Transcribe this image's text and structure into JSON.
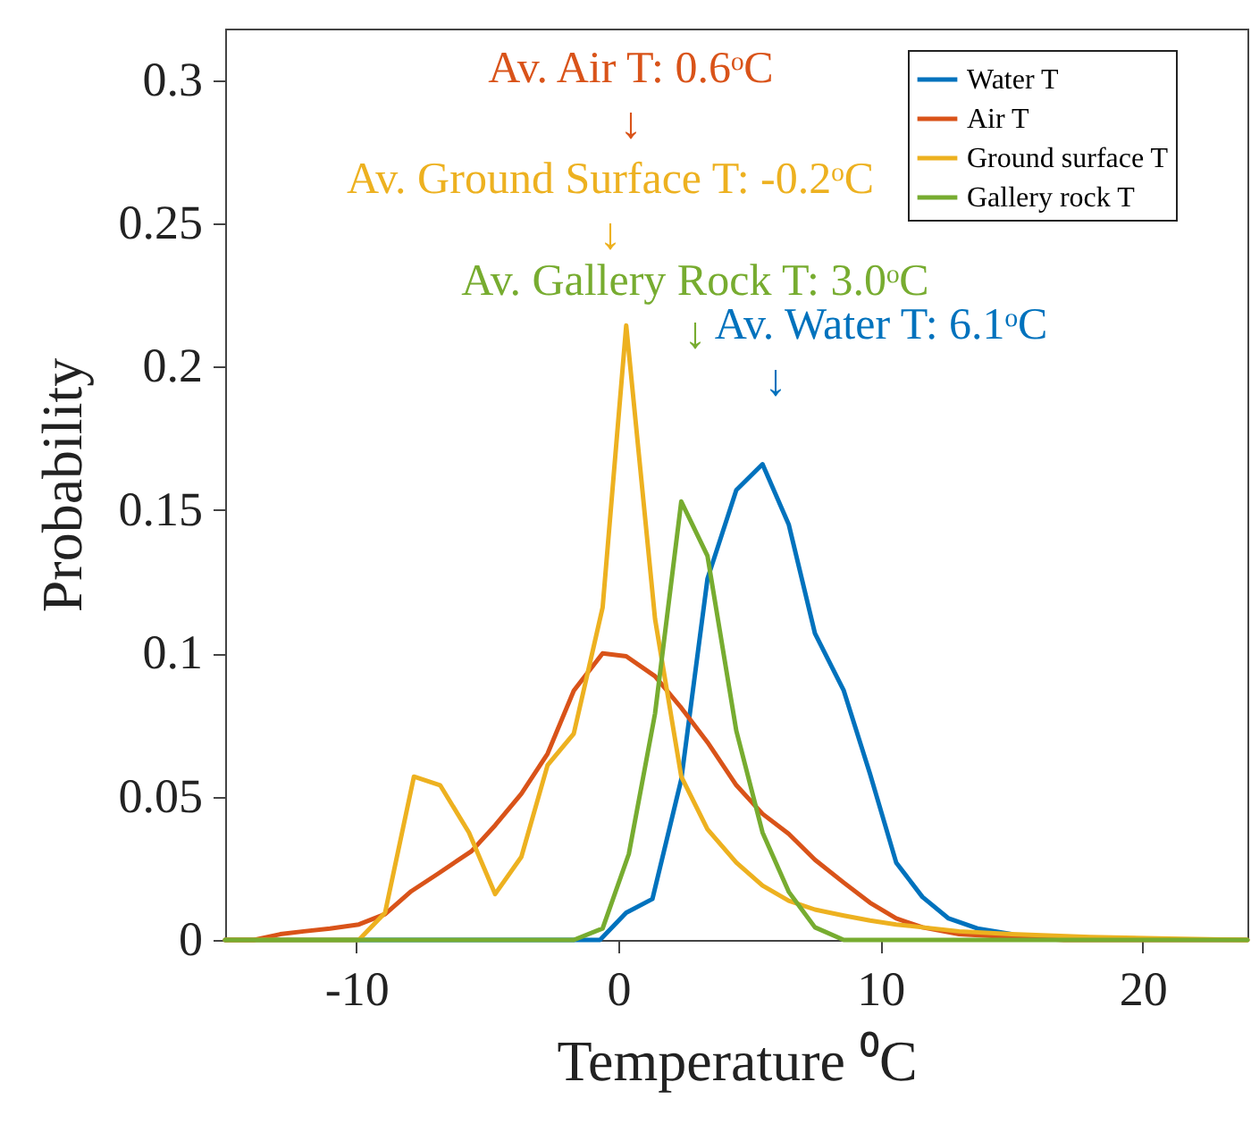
{
  "chart_data": {
    "type": "line",
    "xlabel": "Temperature ⁰C",
    "ylabel": "Probability",
    "xlim": [
      -15,
      24
    ],
    "ylim": [
      0,
      0.318
    ],
    "xticks": [
      -10,
      0,
      10,
      20
    ],
    "yticks": [
      0,
      0.05,
      0.1,
      0.15,
      0.2,
      0.25,
      0.3
    ],
    "grid": false,
    "legend": "top right",
    "marker": "none",
    "line_style": "solid",
    "series": [
      {
        "name": "Water T",
        "color": "#0072bd",
        "x": [
          -15,
          -1.6,
          -0.7,
          0.3,
          1.3,
          2.4,
          3.4,
          4.5,
          5.5,
          6.5,
          7.5,
          8.6,
          9.6,
          10.6,
          11.6,
          12.6,
          13.7,
          15
        ],
        "values": [
          0,
          0,
          0,
          0.0095,
          0.0143,
          0.056,
          0.126,
          0.157,
          0.166,
          0.145,
          0.107,
          0.087,
          0.058,
          0.027,
          0.015,
          0.0075,
          0.004,
          0.002
        ]
      },
      {
        "name": "Air T",
        "color": "#d95319",
        "x": [
          -15,
          -13.9,
          -12.9,
          -12,
          -11,
          -9.9,
          -8.9,
          -7.9,
          -6.9,
          -5.6,
          -4.7,
          -3.7,
          -2.7,
          -1.7,
          -0.6,
          0.3,
          1.4,
          2.4,
          3.4,
          4.5,
          5.5,
          6.5,
          7.5,
          8.6,
          9.6,
          10.6,
          11.6,
          13,
          15,
          17,
          24
        ],
        "values": [
          0,
          0,
          0.002,
          0.003,
          0.004,
          0.0054,
          0.009,
          0.017,
          0.023,
          0.031,
          0.04,
          0.051,
          0.065,
          0.087,
          0.1,
          0.099,
          0.092,
          0.081,
          0.069,
          0.054,
          0.044,
          0.037,
          0.028,
          0.02,
          0.013,
          0.0075,
          0.0044,
          0.002,
          0.001,
          0,
          0
        ]
      },
      {
        "name": "Ground surface T",
        "color": "#edb120",
        "x": [
          -15,
          -9.9,
          -8.9,
          -7.8,
          -6.8,
          -5.7,
          -4.7,
          -3.7,
          -2.7,
          -1.7,
          -0.6,
          0.3,
          1.4,
          2.4,
          3.4,
          4.5,
          5.5,
          6.5,
          7.5,
          8.6,
          9.6,
          10.6,
          11.6,
          13,
          15,
          18,
          21,
          24
        ],
        "values": [
          0,
          0,
          0.0095,
          0.057,
          0.054,
          0.0375,
          0.016,
          0.029,
          0.061,
          0.072,
          0.116,
          0.2144,
          0.112,
          0.057,
          0.0386,
          0.027,
          0.019,
          0.0137,
          0.0106,
          0.0085,
          0.0068,
          0.0054,
          0.0044,
          0.003,
          0.002,
          0.001,
          0.0005,
          0
        ]
      },
      {
        "name": "Gallery rock T",
        "color": "#77ac30",
        "x": [
          -15,
          -1.7,
          -0.6,
          0.4,
          1.4,
          2.4,
          3.4,
          4.5,
          5.5,
          6.5,
          7.5,
          8.6,
          24
        ],
        "values": [
          0,
          0,
          0.004,
          0.03,
          0.079,
          0.153,
          0.134,
          0.073,
          0.0375,
          0.0168,
          0.0044,
          0,
          0
        ]
      }
    ],
    "annotations": [
      "Av. Air T: 0.6ᵒC",
      "↓",
      "Av. Ground Surface T: -0.2ᵒC",
      "↓",
      "Av. Gallery Rock T: 3.0ᵒC",
      "↓",
      "Av. Water T: 6.1ᵒC",
      "↓"
    ]
  }
}
